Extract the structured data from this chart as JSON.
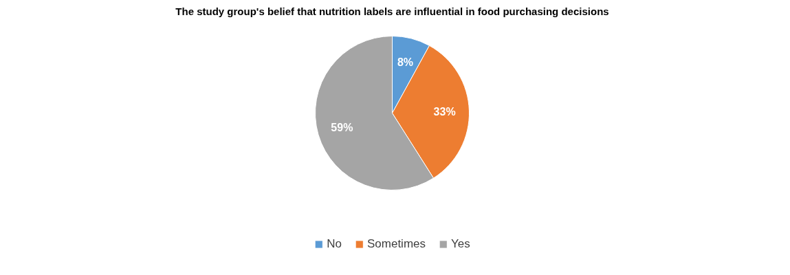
{
  "chart_data": {
    "type": "pie",
    "title": "The study group's belief that nutrition labels are influential in food purchasing decisions",
    "categories": [
      "No",
      "Sometimes",
      "Yes"
    ],
    "values": [
      8,
      33,
      59
    ],
    "value_labels": [
      "8%",
      "33%",
      "59%"
    ],
    "colors": [
      "#5b9bd5",
      "#ed7d31",
      "#a5a5a5"
    ],
    "legend": "bottom"
  }
}
